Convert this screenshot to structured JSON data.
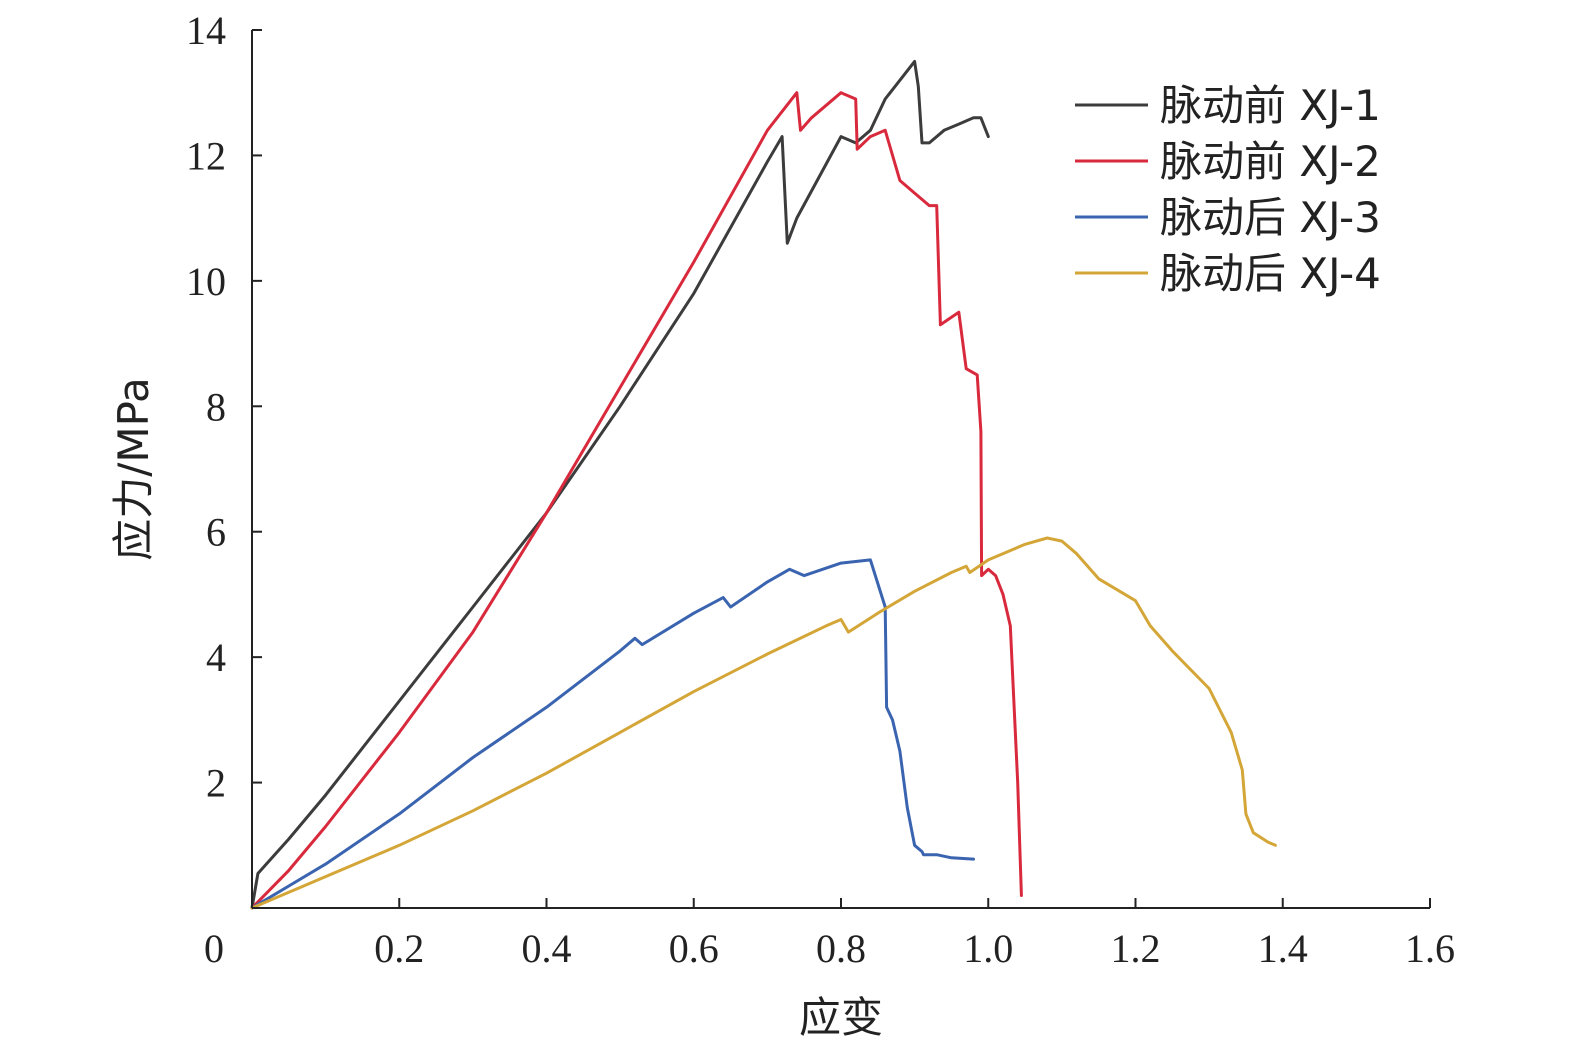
{
  "chart_data": {
    "type": "line",
    "xlabel": "应变",
    "ylabel": "应力/MPa",
    "xlim": [
      0,
      1.6
    ],
    "ylim": [
      0,
      14
    ],
    "xticks": [
      0,
      0.2,
      0.4,
      0.6,
      0.8,
      1.0,
      1.2,
      1.4,
      1.6
    ],
    "xtick_labels": [
      "0",
      "0.2",
      "0.4",
      "0.6",
      "0.8",
      "1.0",
      "1.2",
      "1.4",
      "1.6"
    ],
    "yticks": [
      2,
      4,
      6,
      8,
      10,
      12,
      14
    ],
    "ytick_labels": [
      "2",
      "4",
      "6",
      "8",
      "10",
      "12",
      "14"
    ],
    "legend_position": "top-right",
    "series": [
      {
        "name": "脉动前 XJ-1",
        "color": "#3c3c3c",
        "x": [
          0,
          0.008,
          0.05,
          0.1,
          0.2,
          0.3,
          0.4,
          0.5,
          0.6,
          0.7,
          0.72,
          0.727,
          0.74,
          0.8,
          0.82,
          0.84,
          0.86,
          0.9,
          0.905,
          0.91,
          0.92,
          0.94,
          0.96,
          0.98,
          0.99,
          1.0
        ],
        "y": [
          0,
          0.55,
          1.1,
          1.8,
          3.3,
          4.8,
          6.3,
          8.0,
          9.8,
          11.9,
          12.3,
          10.6,
          11.0,
          12.3,
          12.2,
          12.4,
          12.9,
          13.5,
          13.1,
          12.2,
          12.2,
          12.4,
          12.5,
          12.6,
          12.6,
          12.3
        ]
      },
      {
        "name": "脉动前 XJ-2",
        "color": "#d82a3c",
        "x": [
          0,
          0.05,
          0.1,
          0.2,
          0.3,
          0.4,
          0.5,
          0.6,
          0.7,
          0.74,
          0.745,
          0.76,
          0.8,
          0.82,
          0.822,
          0.84,
          0.86,
          0.88,
          0.9,
          0.92,
          0.93,
          0.935,
          0.96,
          0.97,
          0.985,
          0.99,
          0.991,
          1.0,
          1.01,
          1.02,
          1.03,
          1.04,
          1.045
        ],
        "y": [
          0,
          0.6,
          1.3,
          2.8,
          4.4,
          6.3,
          8.3,
          10.3,
          12.4,
          13.0,
          12.4,
          12.6,
          13.0,
          12.9,
          12.1,
          12.3,
          12.4,
          11.6,
          11.4,
          11.2,
          11.2,
          9.3,
          9.5,
          8.6,
          8.5,
          7.6,
          5.3,
          5.4,
          5.3,
          5.0,
          4.5,
          2.0,
          0.2
        ]
      },
      {
        "name": "脉动后 XJ-3",
        "color": "#3a64b0",
        "x": [
          0,
          0.05,
          0.1,
          0.2,
          0.3,
          0.4,
          0.5,
          0.52,
          0.53,
          0.6,
          0.64,
          0.65,
          0.7,
          0.73,
          0.75,
          0.8,
          0.84,
          0.86,
          0.862,
          0.87,
          0.88,
          0.89,
          0.9,
          0.91,
          0.912,
          0.93,
          0.95,
          0.98
        ],
        "y": [
          0,
          0.35,
          0.7,
          1.5,
          2.4,
          3.2,
          4.1,
          4.3,
          4.2,
          4.7,
          4.95,
          4.8,
          5.2,
          5.4,
          5.3,
          5.5,
          5.55,
          4.8,
          3.2,
          3.0,
          2.5,
          1.6,
          1.0,
          0.9,
          0.85,
          0.85,
          0.8,
          0.78
        ]
      },
      {
        "name": "脉动后 XJ-4",
        "color": "#d4a638",
        "x": [
          0,
          0.05,
          0.1,
          0.2,
          0.3,
          0.4,
          0.5,
          0.6,
          0.7,
          0.78,
          0.8,
          0.81,
          0.85,
          0.9,
          0.95,
          0.97,
          0.975,
          1.0,
          1.05,
          1.08,
          1.1,
          1.12,
          1.15,
          1.2,
          1.22,
          1.25,
          1.3,
          1.33,
          1.345,
          1.35,
          1.36,
          1.38,
          1.39
        ],
        "y": [
          0,
          0.25,
          0.5,
          1.0,
          1.55,
          2.15,
          2.8,
          3.45,
          4.05,
          4.5,
          4.6,
          4.4,
          4.7,
          5.05,
          5.35,
          5.45,
          5.35,
          5.55,
          5.8,
          5.9,
          5.85,
          5.65,
          5.25,
          4.9,
          4.5,
          4.1,
          3.5,
          2.8,
          2.2,
          1.5,
          1.2,
          1.05,
          1.0
        ]
      }
    ]
  }
}
